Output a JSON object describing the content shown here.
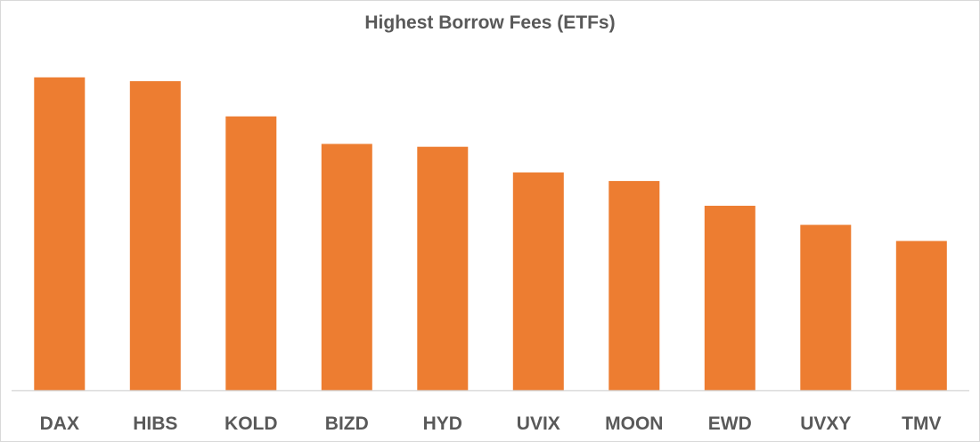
{
  "chart_data": {
    "type": "bar",
    "title": "Highest Borrow Fees (ETFs)",
    "xlabel": "",
    "ylabel": "",
    "categories": [
      "DAX",
      "HIBS",
      "KOLD",
      "BIZD",
      "HYD",
      "UVIX",
      "MOON",
      "EWD",
      "UVXY",
      "TMV"
    ],
    "values": [
      329,
      325,
      288,
      259,
      256,
      229,
      220,
      194,
      174,
      157
    ],
    "ylim": [
      0,
      400
    ],
    "grid": false,
    "legend": "none",
    "colors": {
      "bar": "#ED7D31",
      "axis": "#D9D9D9",
      "text": "#595959"
    }
  }
}
